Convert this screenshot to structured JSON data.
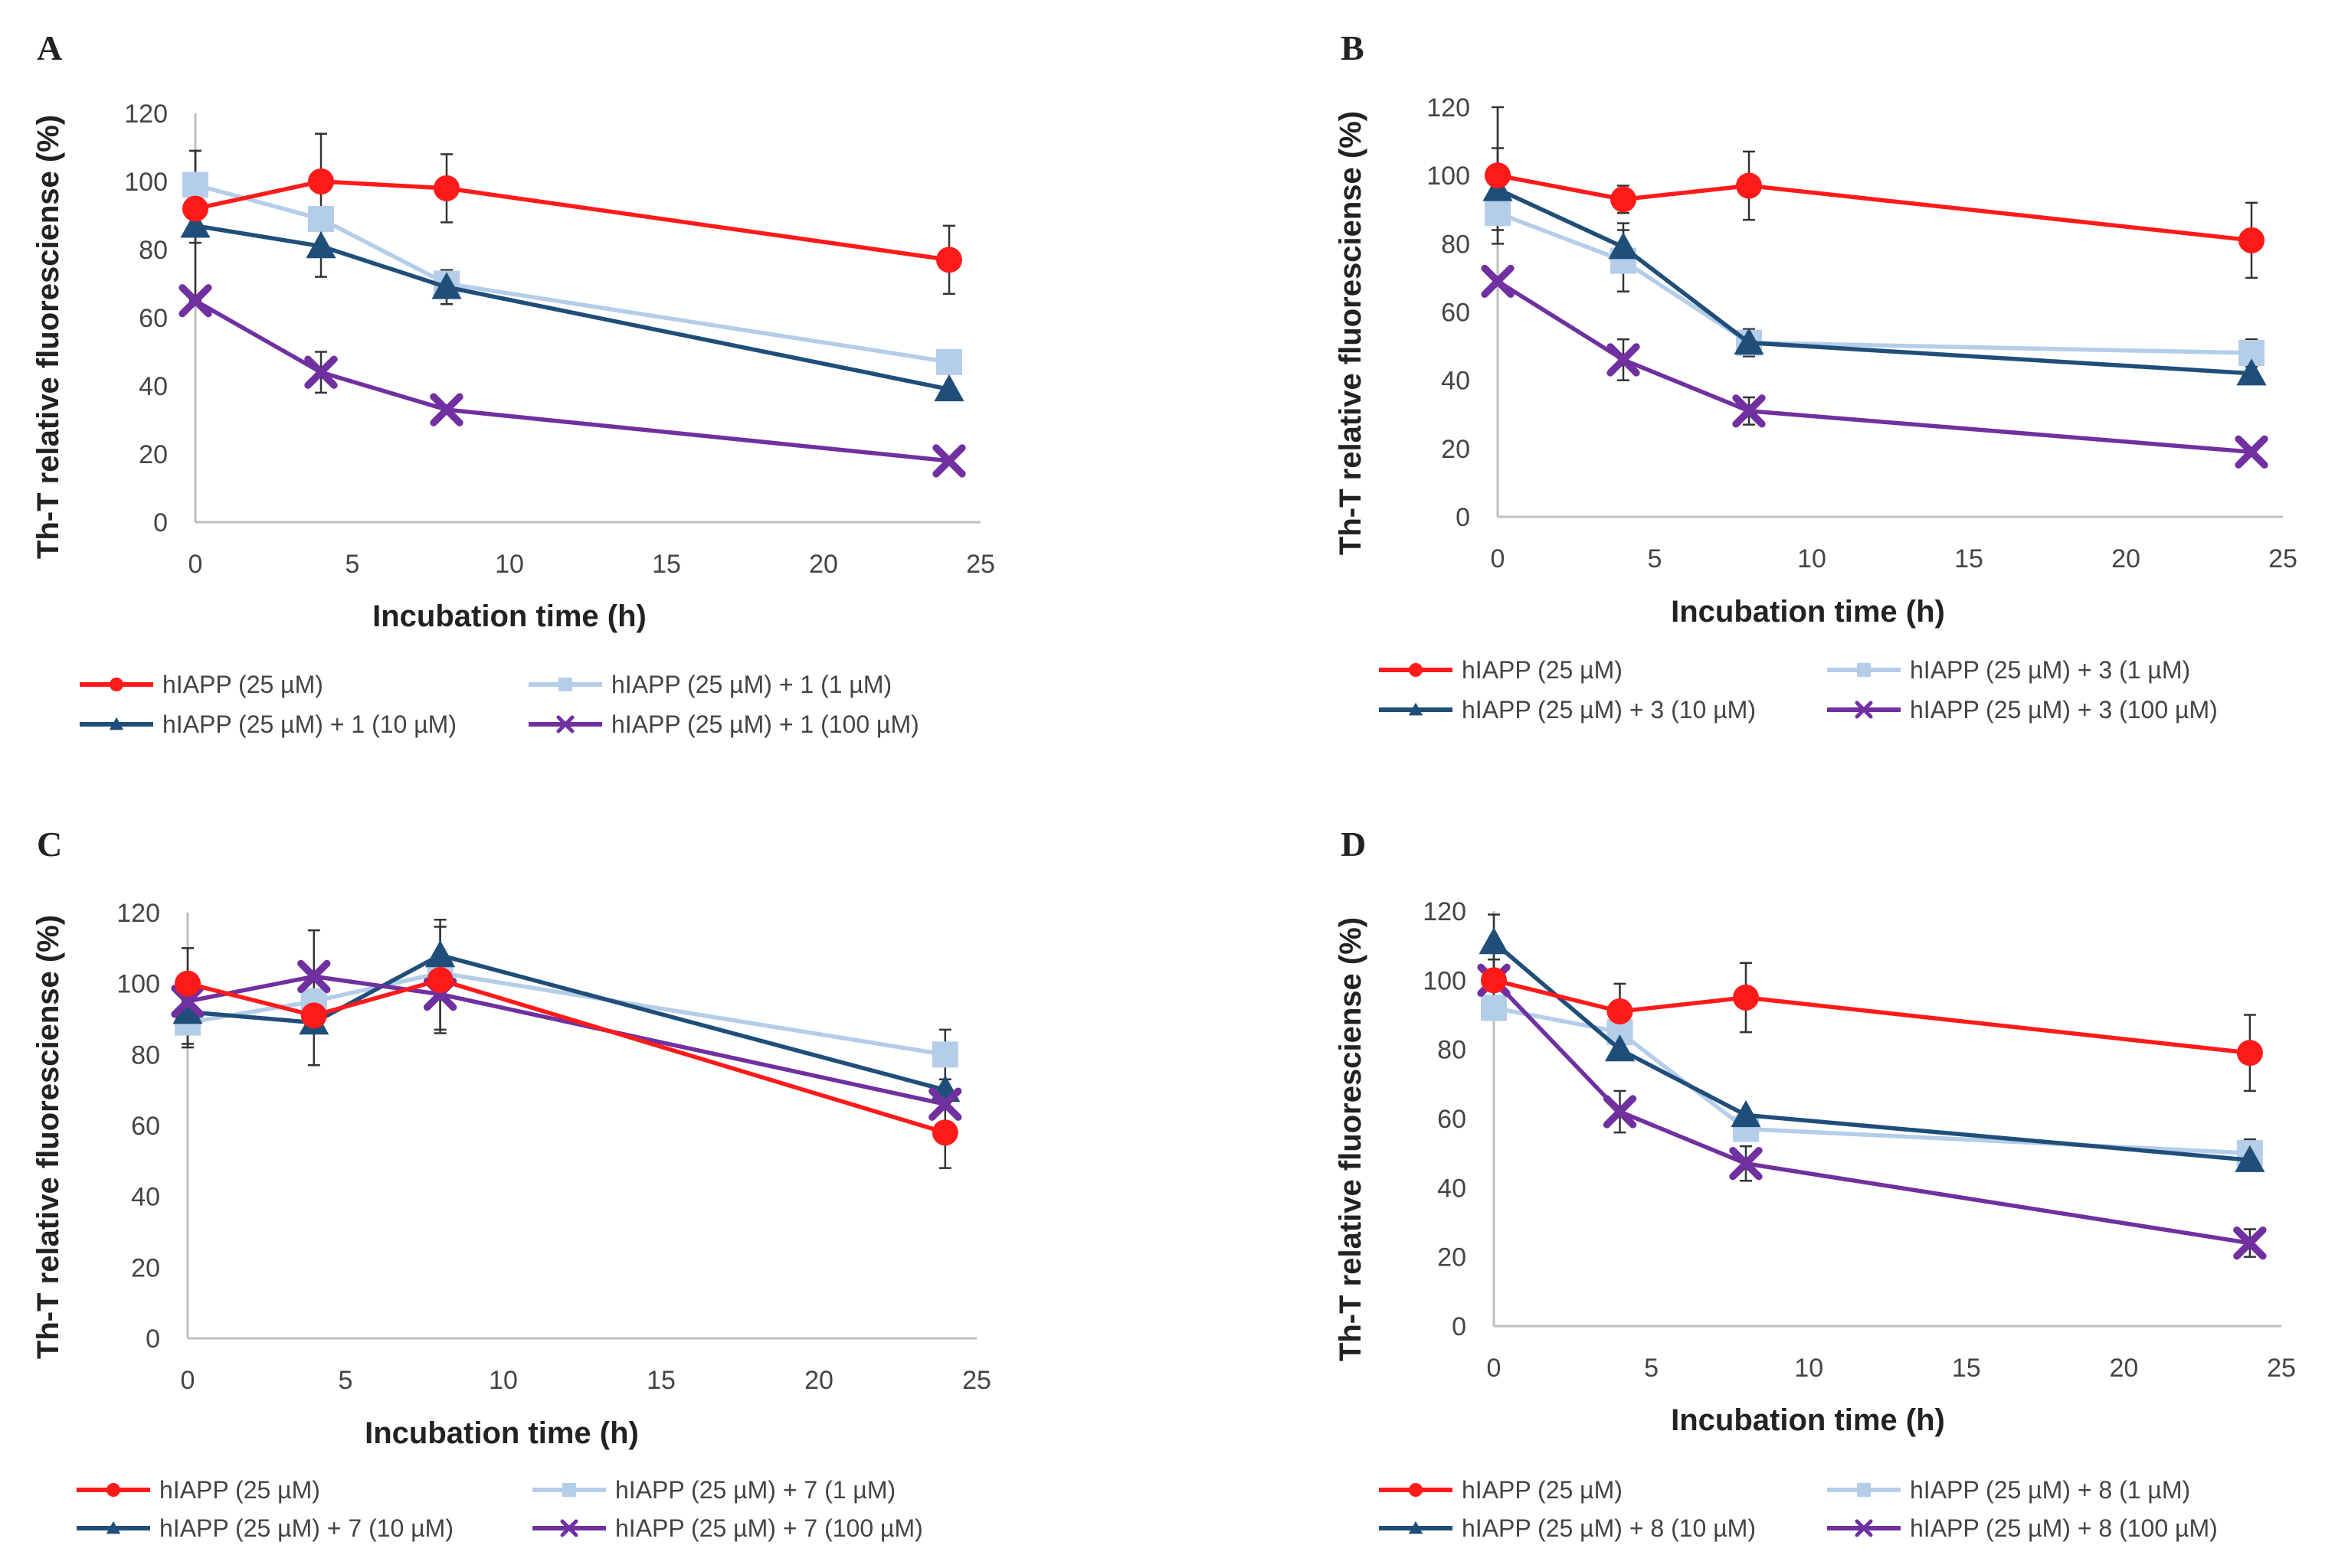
{
  "chart_data": [
    {
      "type": "line",
      "panel": "A",
      "xlabel": "Incubation time (h)",
      "ylabel": "Th-T relative fluoresciense (%)",
      "xlim": [
        0,
        25
      ],
      "ylim": [
        0,
        120
      ],
      "xticks": [
        0,
        5,
        10,
        15,
        20,
        25
      ],
      "yticks": [
        0,
        20,
        40,
        60,
        80,
        100,
        120
      ],
      "grid": false,
      "legend": "bottom",
      "x": [
        0,
        4,
        8,
        24
      ],
      "series": [
        {
          "name": "hIAPP (25 µM)",
          "color": "#ff1a1a",
          "marker": "circle",
          "values": [
            92,
            100,
            98,
            77
          ],
          "errors": [
            10,
            14,
            10,
            10
          ]
        },
        {
          "name": "hIAPP (25 µM) + 1 (1 µM)",
          "color": "#b4cde9",
          "marker": "square",
          "values": [
            99,
            89,
            70,
            47
          ],
          "errors": [
            10,
            0,
            0,
            0
          ]
        },
        {
          "name": "hIAPP (25 µM) + 1 (10 µM)",
          "color": "#1f4e79",
          "marker": "triangle",
          "values": [
            87,
            81,
            69,
            39
          ],
          "errors": [
            22,
            9,
            5,
            0
          ]
        },
        {
          "name": "hIAPP (25 µM) + 1 (100 µM)",
          "color": "#7030a0",
          "marker": "x",
          "values": [
            65,
            44,
            33,
            18
          ],
          "errors": [
            0,
            6,
            0,
            0
          ]
        }
      ]
    },
    {
      "type": "line",
      "panel": "B",
      "xlabel": "Incubation time (h)",
      "ylabel": "Th-T relative fluoresciense (%)",
      "xlim": [
        0,
        25
      ],
      "ylim": [
        0,
        120
      ],
      "xticks": [
        0,
        5,
        10,
        15,
        20,
        25
      ],
      "yticks": [
        0,
        20,
        40,
        60,
        80,
        100,
        120
      ],
      "grid": false,
      "legend": "bottom",
      "x": [
        0,
        4,
        8,
        24
      ],
      "series": [
        {
          "name": "hIAPP (25 µM)",
          "color": "#ff1a1a",
          "marker": "circle",
          "values": [
            100,
            93,
            97,
            81
          ],
          "errors": [
            20,
            4,
            10,
            11
          ]
        },
        {
          "name": "hIAPP (25 µM) + 3 (1 µM)",
          "color": "#b4cde9",
          "marker": "square",
          "values": [
            89,
            75,
            51,
            48
          ],
          "errors": [
            0,
            9,
            0,
            4
          ]
        },
        {
          "name": "hIAPP (25 µM) + 3 (10 µM)",
          "color": "#1f4e79",
          "marker": "triangle",
          "values": [
            96,
            79,
            51,
            42
          ],
          "errors": [
            12,
            7,
            4,
            0
          ]
        },
        {
          "name": "hIAPP (25 µM) + 3 (100 µM)",
          "color": "#7030a0",
          "marker": "x",
          "values": [
            69,
            46,
            31,
            19
          ],
          "errors": [
            0,
            6,
            4,
            0
          ]
        }
      ]
    },
    {
      "type": "line",
      "panel": "C",
      "xlabel": "Incubation time (h)",
      "ylabel": "Th-T relative fluoresciense (%)",
      "xlim": [
        0,
        25
      ],
      "ylim": [
        0,
        120
      ],
      "xticks": [
        0,
        5,
        10,
        15,
        20,
        25
      ],
      "yticks": [
        0,
        20,
        40,
        60,
        80,
        100,
        120
      ],
      "grid": false,
      "legend": "bottom",
      "x": [
        0,
        4,
        8,
        24
      ],
      "series": [
        {
          "name": "hIAPP (25 µM)",
          "color": "#ff1a1a",
          "marker": "circle",
          "values": [
            100,
            91,
            101,
            58
          ],
          "errors": [
            10,
            0,
            15,
            10
          ]
        },
        {
          "name": "hIAPP (25 µM) + 7 (1 µM)",
          "color": "#b4cde9",
          "marker": "square",
          "values": [
            89,
            95,
            103,
            80
          ],
          "errors": [
            6,
            0,
            0,
            7
          ]
        },
        {
          "name": "hIAPP (25 µM) + 7 (10 µM)",
          "color": "#1f4e79",
          "marker": "triangle",
          "values": [
            92,
            89,
            108,
            70
          ],
          "errors": [
            10,
            12,
            10,
            0
          ]
        },
        {
          "name": "hIAPP (25 µM) + 7 (100 µM)",
          "color": "#7030a0",
          "marker": "x",
          "values": [
            95,
            102,
            97,
            66
          ],
          "errors": [
            0,
            13,
            10,
            0
          ]
        }
      ]
    },
    {
      "type": "line",
      "panel": "D",
      "xlabel": "Incubation time (h)",
      "ylabel": "Th-T relative fluoresciense (%)",
      "xlim": [
        0,
        25
      ],
      "ylim": [
        0,
        120
      ],
      "xticks": [
        0,
        5,
        10,
        15,
        20,
        25
      ],
      "yticks": [
        0,
        20,
        40,
        60,
        80,
        100,
        120
      ],
      "grid": false,
      "legend": "bottom",
      "x": [
        0,
        4,
        8,
        24
      ],
      "series": [
        {
          "name": "hIAPP (25 µM)",
          "color": "#ff1a1a",
          "marker": "circle",
          "values": [
            100,
            91,
            95,
            79
          ],
          "errors": [
            6,
            8,
            10,
            11
          ]
        },
        {
          "name": "hIAPP (25 µM) + 8 (1 µM)",
          "color": "#b4cde9",
          "marker": "square",
          "values": [
            92,
            85,
            57,
            50
          ],
          "errors": [
            0,
            0,
            0,
            4
          ]
        },
        {
          "name": "hIAPP (25 µM) + 8 (10 µM)",
          "color": "#1f4e79",
          "marker": "triangle",
          "values": [
            111,
            80,
            61,
            48
          ],
          "errors": [
            8,
            0,
            0,
            0
          ]
        },
        {
          "name": "hIAPP (25 µM) + 8 (100 µM)",
          "color": "#7030a0",
          "marker": "x",
          "values": [
            100,
            62,
            47,
            24
          ],
          "errors": [
            0,
            6,
            5,
            4
          ]
        }
      ]
    }
  ]
}
